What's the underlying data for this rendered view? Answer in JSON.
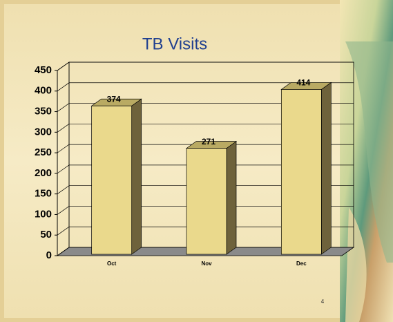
{
  "chart_data": {
    "type": "bar",
    "title": "TB Visits",
    "categories": [
      "Oct",
      "Nov",
      "Dec"
    ],
    "values": [
      374,
      271,
      414
    ],
    "color": "#ead98c",
    "ylim": [
      0,
      450
    ],
    "yticks": [
      0,
      50,
      100,
      150,
      200,
      250,
      300,
      350,
      400,
      450
    ],
    "grid": true
  },
  "slide_number": "4"
}
